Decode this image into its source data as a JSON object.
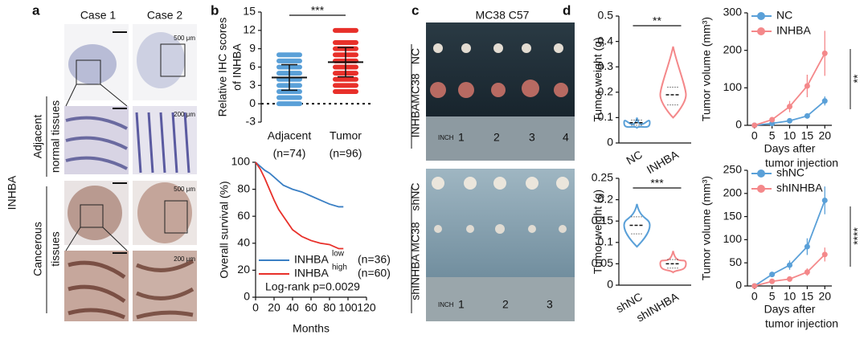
{
  "figure": {
    "panel_labels": [
      "a",
      "b",
      "c",
      "d"
    ],
    "panel_a": {
      "columns": [
        "Case 1",
        "Case 2"
      ],
      "group": "INHBA",
      "row_labels": [
        [
          "Adjacent",
          "normal tissues"
        ],
        [
          "Cancerous",
          "tissues"
        ]
      ],
      "scale_bars": [
        "500 μm",
        "200 μm",
        "500 μm",
        "200 μm"
      ]
    },
    "panel_c": {
      "title": "MC38 C57",
      "model": "MC38",
      "top_groups": [
        "NC",
        "INHBA"
      ],
      "bottom_groups": [
        "shNC",
        "shINHBA"
      ],
      "ruler_top": [
        "INCH",
        "1",
        "2",
        "3",
        "4"
      ],
      "ruler_bottom": [
        "INCH",
        "1",
        "2",
        "3"
      ]
    }
  },
  "chart_data": [
    {
      "type": "dot",
      "ylabel": [
        "Relative IHC scores",
        "of INHBA"
      ],
      "ylim": [
        -3,
        15
      ],
      "yticks": [
        -3,
        0,
        3,
        6,
        9,
        12,
        15
      ],
      "reference": 0,
      "categories": [
        "Adjacent",
        "Tumor"
      ],
      "category_notes": [
        "(n=74)",
        "(n=96)"
      ],
      "colors": [
        "#5aa0d8",
        "#e8302a"
      ],
      "values": [
        4.3,
        6.8
      ],
      "errors": [
        2.1,
        2.4
      ],
      "points": [
        [
          0,
          1,
          2,
          3,
          4,
          5,
          6,
          7,
          8
        ],
        [
          2,
          3,
          4,
          5,
          6,
          7,
          8,
          9,
          10,
          12
        ]
      ],
      "significance": "***"
    },
    {
      "type": "survival",
      "ylabel": "Overall survival (%)",
      "xlabel": "Months",
      "xlim": [
        0,
        120
      ],
      "xticks": [
        0,
        20,
        40,
        60,
        80,
        100,
        120
      ],
      "ylim": [
        0,
        100
      ],
      "yticks": [
        0,
        20,
        40,
        60,
        80,
        100
      ],
      "annotation": "Log-rank p=0.0029",
      "series": [
        {
          "name": "INHBA",
          "sup": "low",
          "note": "(n=36)",
          "color": "#3a7fc4",
          "x": [
            0,
            5,
            10,
            15,
            20,
            25,
            30,
            40,
            50,
            60,
            70,
            80,
            90,
            95
          ],
          "values": [
            100,
            97,
            94,
            92,
            89,
            86,
            83,
            80,
            78,
            75,
            72,
            69,
            67,
            67
          ]
        },
        {
          "name": "INHBA",
          "sup": "high",
          "note": "(n=60)",
          "color": "#e8302a",
          "x": [
            0,
            5,
            10,
            15,
            20,
            25,
            30,
            35,
            40,
            50,
            60,
            70,
            80,
            90,
            95
          ],
          "values": [
            100,
            95,
            88,
            80,
            72,
            65,
            60,
            55,
            50,
            45,
            42,
            40,
            39,
            36,
            36
          ]
        }
      ]
    },
    {
      "type": "violin",
      "ylabel": "Tumor weight (g)",
      "ylim": [
        0,
        0.5
      ],
      "yticks": [
        0,
        0.1,
        0.2,
        0.3,
        0.4,
        0.5
      ],
      "categories": [
        "NC",
        "INHBA"
      ],
      "colors": [
        "#5aa0d8",
        "#f4888a"
      ],
      "min": [
        0.06,
        0.1
      ],
      "q1": [
        0.07,
        0.15
      ],
      "median": [
        0.08,
        0.19
      ],
      "q3": [
        0.09,
        0.22
      ],
      "max": [
        0.1,
        0.38
      ],
      "significance": "**"
    },
    {
      "type": "violin",
      "ylabel": "Tumor weight (g)",
      "ylim": [
        0,
        0.25
      ],
      "yticks": [
        0,
        0.05,
        0.1,
        0.15,
        0.2,
        0.25
      ],
      "categories": [
        "shNC",
        "shINHBA"
      ],
      "colors": [
        "#5aa0d8",
        "#f4888a"
      ],
      "min": [
        0.09,
        0.03
      ],
      "q1": [
        0.12,
        0.04
      ],
      "median": [
        0.14,
        0.05
      ],
      "q3": [
        0.16,
        0.06
      ],
      "max": [
        0.19,
        0.08
      ],
      "significance": "***"
    },
    {
      "type": "line",
      "ylabel": "Tumor volume (mm³)",
      "xlabel": [
        "Days after",
        "tumor injection"
      ],
      "xlim": [
        -2,
        22
      ],
      "xticks": [
        0,
        5,
        10,
        15,
        20
      ],
      "ylim": [
        0,
        300
      ],
      "yticks": [
        0,
        100,
        200,
        300
      ],
      "significance": "**",
      "series": [
        {
          "name": "NC",
          "color": "#5aa0d8",
          "x": [
            0,
            5,
            10,
            15,
            20
          ],
          "values": [
            0,
            5,
            12,
            25,
            65
          ],
          "errors": [
            0,
            2,
            4,
            5,
            12
          ]
        },
        {
          "name": "INHBA",
          "color": "#f4888a",
          "x": [
            0,
            5,
            10,
            15,
            20
          ],
          "values": [
            0,
            15,
            50,
            105,
            192
          ],
          "errors": [
            0,
            5,
            15,
            30,
            60
          ]
        }
      ]
    },
    {
      "type": "line",
      "ylabel": "Tumor volume (mm³)",
      "xlabel": [
        "Days after",
        "tumor injection"
      ],
      "xlim": [
        -2,
        22
      ],
      "xticks": [
        0,
        5,
        10,
        15,
        20
      ],
      "ylim": [
        0,
        250
      ],
      "yticks": [
        0,
        50,
        100,
        150,
        200,
        250
      ],
      "significance": "****",
      "series": [
        {
          "name": "shNC",
          "color": "#5aa0d8",
          "x": [
            0,
            5,
            10,
            15,
            20
          ],
          "values": [
            0,
            25,
            45,
            85,
            185
          ],
          "errors": [
            0,
            5,
            10,
            18,
            30
          ]
        },
        {
          "name": "shINHBA",
          "color": "#f4888a",
          "x": [
            0,
            5,
            10,
            15,
            20
          ],
          "values": [
            0,
            10,
            15,
            30,
            68
          ],
          "errors": [
            0,
            3,
            5,
            8,
            15
          ]
        }
      ]
    }
  ]
}
